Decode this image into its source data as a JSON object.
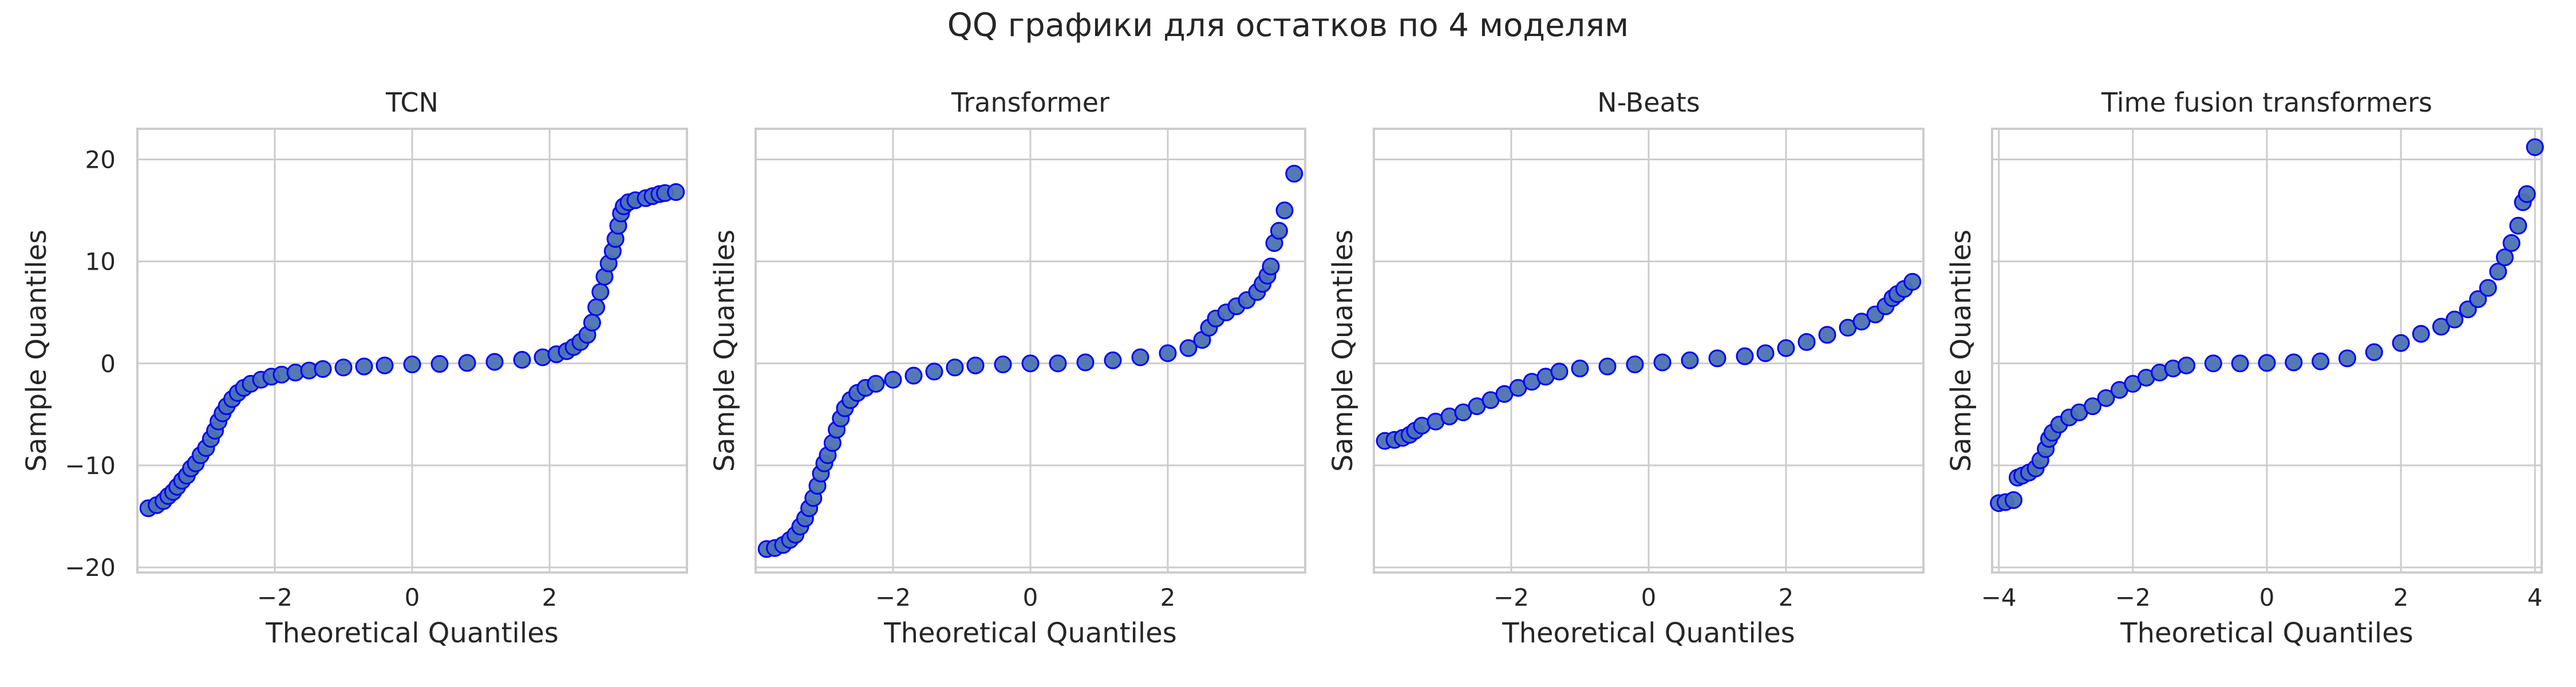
{
  "figure": {
    "title": "QQ графики для остатков по 4 моделям"
  },
  "colors": {
    "marker_fill": "#4c72b0",
    "marker_edge": "#0000ff",
    "grid": "#cccccc",
    "axis_text": "#262626"
  },
  "chart_data": [
    {
      "type": "scatter",
      "title": "TCN",
      "xlabel": "Theoretical Quantiles",
      "ylabel": "Sample Quantiles",
      "xlim": [
        -4.0,
        4.0
      ],
      "ylim": [
        -20.5,
        23.0
      ],
      "xticks": [
        -2,
        0,
        2
      ],
      "yticks": [
        -20,
        -10,
        0,
        10,
        20
      ],
      "show_ytick_labels": true,
      "grid": true,
      "points": [
        [
          -3.84,
          -14.2
        ],
        [
          -3.72,
          -13.9
        ],
        [
          -3.62,
          -13.5
        ],
        [
          -3.55,
          -13.0
        ],
        [
          -3.48,
          -12.6
        ],
        [
          -3.42,
          -12.1
        ],
        [
          -3.35,
          -11.5
        ],
        [
          -3.28,
          -11.0
        ],
        [
          -3.22,
          -10.3
        ],
        [
          -3.15,
          -9.8
        ],
        [
          -3.08,
          -9.0
        ],
        [
          -3.0,
          -8.3
        ],
        [
          -2.93,
          -7.4
        ],
        [
          -2.87,
          -6.6
        ],
        [
          -2.82,
          -5.7
        ],
        [
          -2.76,
          -4.9
        ],
        [
          -2.7,
          -4.2
        ],
        [
          -2.62,
          -3.5
        ],
        [
          -2.54,
          -2.9
        ],
        [
          -2.45,
          -2.4
        ],
        [
          -2.35,
          -2.0
        ],
        [
          -2.2,
          -1.6
        ],
        [
          -2.05,
          -1.3
        ],
        [
          -1.9,
          -1.1
        ],
        [
          -1.7,
          -0.9
        ],
        [
          -1.5,
          -0.7
        ],
        [
          -1.3,
          -0.55
        ],
        [
          -1.0,
          -0.4
        ],
        [
          -0.7,
          -0.3
        ],
        [
          -0.4,
          -0.2
        ],
        [
          0.0,
          -0.1
        ],
        [
          0.4,
          -0.05
        ],
        [
          0.8,
          0.05
        ],
        [
          1.2,
          0.15
        ],
        [
          1.6,
          0.35
        ],
        [
          1.9,
          0.6
        ],
        [
          2.1,
          0.9
        ],
        [
          2.25,
          1.2
        ],
        [
          2.35,
          1.6
        ],
        [
          2.45,
          2.1
        ],
        [
          2.55,
          2.8
        ],
        [
          2.62,
          4.0
        ],
        [
          2.68,
          5.5
        ],
        [
          2.74,
          7.0
        ],
        [
          2.8,
          8.5
        ],
        [
          2.86,
          9.8
        ],
        [
          2.92,
          11.0
        ],
        [
          2.96,
          12.2
        ],
        [
          3.0,
          13.5
        ],
        [
          3.04,
          14.7
        ],
        [
          3.08,
          15.4
        ],
        [
          3.15,
          15.8
        ],
        [
          3.25,
          16.0
        ],
        [
          3.4,
          16.2
        ],
        [
          3.5,
          16.4
        ],
        [
          3.6,
          16.6
        ],
        [
          3.68,
          16.7
        ],
        [
          3.84,
          16.8
        ]
      ]
    },
    {
      "type": "scatter",
      "title": "Transformer",
      "xlabel": "Theoretical Quantiles",
      "ylabel": "Sample Quantiles",
      "xlim": [
        -4.0,
        4.0
      ],
      "ylim": [
        -20.5,
        23.0
      ],
      "xticks": [
        -2,
        0,
        2
      ],
      "yticks": [
        -20,
        -10,
        0,
        10,
        20
      ],
      "show_ytick_labels": false,
      "grid": true,
      "points": [
        [
          -3.84,
          -18.2
        ],
        [
          -3.72,
          -18.1
        ],
        [
          -3.6,
          -17.8
        ],
        [
          -3.5,
          -17.3
        ],
        [
          -3.42,
          -16.8
        ],
        [
          -3.35,
          -16.0
        ],
        [
          -3.28,
          -15.2
        ],
        [
          -3.22,
          -14.2
        ],
        [
          -3.16,
          -13.2
        ],
        [
          -3.1,
          -12.0
        ],
        [
          -3.05,
          -10.8
        ],
        [
          -3.0,
          -9.8
        ],
        [
          -2.95,
          -9.0
        ],
        [
          -2.88,
          -7.8
        ],
        [
          -2.82,
          -6.5
        ],
        [
          -2.76,
          -5.4
        ],
        [
          -2.7,
          -4.4
        ],
        [
          -2.62,
          -3.6
        ],
        [
          -2.52,
          -2.9
        ],
        [
          -2.4,
          -2.4
        ],
        [
          -2.25,
          -2.0
        ],
        [
          -2.0,
          -1.6
        ],
        [
          -1.7,
          -1.2
        ],
        [
          -1.4,
          -0.8
        ],
        [
          -1.1,
          -0.4
        ],
        [
          -0.8,
          -0.2
        ],
        [
          -0.4,
          -0.1
        ],
        [
          0.0,
          0.0
        ],
        [
          0.4,
          0.0
        ],
        [
          0.8,
          0.1
        ],
        [
          1.2,
          0.3
        ],
        [
          1.6,
          0.6
        ],
        [
          2.0,
          1.0
        ],
        [
          2.3,
          1.5
        ],
        [
          2.5,
          2.3
        ],
        [
          2.6,
          3.5
        ],
        [
          2.7,
          4.4
        ],
        [
          2.85,
          5.0
        ],
        [
          3.0,
          5.6
        ],
        [
          3.15,
          6.2
        ],
        [
          3.3,
          7.0
        ],
        [
          3.38,
          7.8
        ],
        [
          3.45,
          8.6
        ],
        [
          3.5,
          9.5
        ],
        [
          3.55,
          11.8
        ],
        [
          3.62,
          13.0
        ],
        [
          3.7,
          15.0
        ],
        [
          3.84,
          18.6
        ]
      ]
    },
    {
      "type": "scatter",
      "title": "N-Beats",
      "xlabel": "Theoretical Quantiles",
      "ylabel": "Sample Quantiles",
      "xlim": [
        -4.0,
        4.0
      ],
      "ylim": [
        -20.5,
        23.0
      ],
      "xticks": [
        -2,
        0,
        2
      ],
      "yticks": [
        -20,
        -10,
        0,
        10,
        20
      ],
      "show_ytick_labels": false,
      "grid": true,
      "points": [
        [
          -3.84,
          -7.6
        ],
        [
          -3.7,
          -7.5
        ],
        [
          -3.58,
          -7.3
        ],
        [
          -3.48,
          -7.0
        ],
        [
          -3.4,
          -6.6
        ],
        [
          -3.3,
          -6.1
        ],
        [
          -3.1,
          -5.7
        ],
        [
          -2.9,
          -5.2
        ],
        [
          -2.7,
          -4.8
        ],
        [
          -2.5,
          -4.2
        ],
        [
          -2.3,
          -3.6
        ],
        [
          -2.1,
          -3.0
        ],
        [
          -1.9,
          -2.4
        ],
        [
          -1.7,
          -1.8
        ],
        [
          -1.5,
          -1.3
        ],
        [
          -1.3,
          -0.8
        ],
        [
          -1.0,
          -0.5
        ],
        [
          -0.6,
          -0.3
        ],
        [
          -0.2,
          -0.1
        ],
        [
          0.2,
          0.1
        ],
        [
          0.6,
          0.3
        ],
        [
          1.0,
          0.5
        ],
        [
          1.4,
          0.7
        ],
        [
          1.7,
          1.0
        ],
        [
          2.0,
          1.5
        ],
        [
          2.3,
          2.1
        ],
        [
          2.6,
          2.8
        ],
        [
          2.9,
          3.5
        ],
        [
          3.1,
          4.1
        ],
        [
          3.3,
          4.8
        ],
        [
          3.45,
          5.6
        ],
        [
          3.55,
          6.4
        ],
        [
          3.62,
          6.8
        ],
        [
          3.72,
          7.3
        ],
        [
          3.84,
          8.0
        ]
      ]
    },
    {
      "type": "scatter",
      "title": "Time fusion transformers",
      "xlabel": "Theoretical Quantiles",
      "ylabel": "Sample Quantiles",
      "xlim": [
        -4.1,
        4.1
      ],
      "ylim": [
        -20.5,
        23.0
      ],
      "xticks": [
        -4,
        -2,
        0,
        2,
        4
      ],
      "yticks": [
        -20,
        -10,
        0,
        10,
        20
      ],
      "show_ytick_labels": false,
      "grid": true,
      "points": [
        [
          -4.0,
          -13.7
        ],
        [
          -3.9,
          -13.6
        ],
        [
          -3.78,
          -13.4
        ],
        [
          -3.72,
          -11.2
        ],
        [
          -3.65,
          -11.0
        ],
        [
          -3.55,
          -10.7
        ],
        [
          -3.45,
          -10.3
        ],
        [
          -3.38,
          -9.5
        ],
        [
          -3.3,
          -8.4
        ],
        [
          -3.25,
          -7.4
        ],
        [
          -3.2,
          -6.8
        ],
        [
          -3.1,
          -6.0
        ],
        [
          -2.95,
          -5.3
        ],
        [
          -2.8,
          -4.8
        ],
        [
          -2.6,
          -4.2
        ],
        [
          -2.4,
          -3.4
        ],
        [
          -2.2,
          -2.6
        ],
        [
          -2.0,
          -2.0
        ],
        [
          -1.8,
          -1.4
        ],
        [
          -1.6,
          -0.9
        ],
        [
          -1.4,
          -0.5
        ],
        [
          -1.2,
          -0.2
        ],
        [
          -0.8,
          0.0
        ],
        [
          -0.4,
          0.0
        ],
        [
          0.0,
          0.05
        ],
        [
          0.4,
          0.1
        ],
        [
          0.8,
          0.2
        ],
        [
          1.2,
          0.5
        ],
        [
          1.6,
          1.1
        ],
        [
          2.0,
          2.0
        ],
        [
          2.3,
          2.9
        ],
        [
          2.6,
          3.6
        ],
        [
          2.8,
          4.3
        ],
        [
          3.0,
          5.3
        ],
        [
          3.15,
          6.3
        ],
        [
          3.3,
          7.4
        ],
        [
          3.45,
          9.0
        ],
        [
          3.55,
          10.4
        ],
        [
          3.65,
          11.8
        ],
        [
          3.75,
          13.5
        ],
        [
          3.82,
          15.8
        ],
        [
          3.88,
          16.6
        ],
        [
          4.0,
          21.2
        ]
      ]
    }
  ]
}
